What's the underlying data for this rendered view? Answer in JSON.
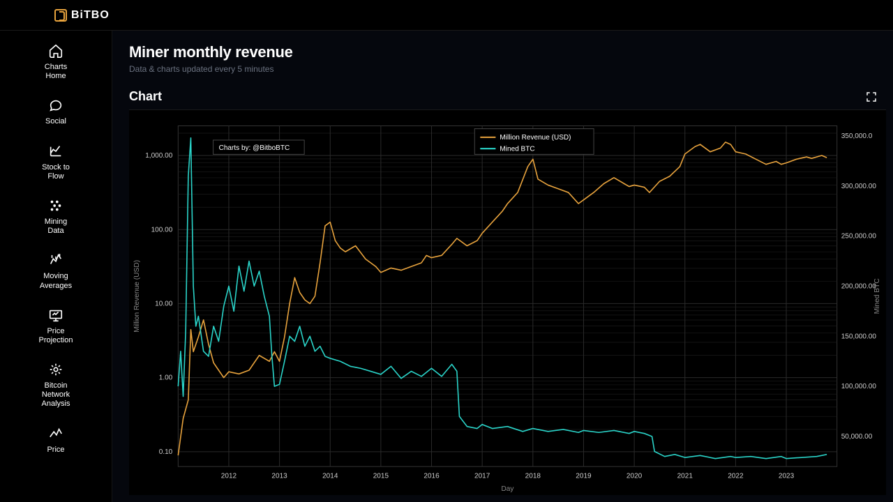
{
  "brand": "BiTBO",
  "sidebar": {
    "items": [
      {
        "label": "Charts Home",
        "icon": "home"
      },
      {
        "label": "Social",
        "icon": "social"
      },
      {
        "label": "Stock to Flow",
        "icon": "stf"
      },
      {
        "label": "Mining Data",
        "icon": "mining"
      },
      {
        "label": "Moving Averages",
        "icon": "ma"
      },
      {
        "label": "Price Projection",
        "icon": "proj"
      },
      {
        "label": "Bitcoin Network Analysis",
        "icon": "network"
      },
      {
        "label": "Price",
        "icon": "price"
      }
    ]
  },
  "page": {
    "title": "Miner monthly revenue",
    "subtitle": "Data & charts updated every 5 minutes",
    "chart_header": "Chart"
  },
  "chart": {
    "attribution": "Charts by: @BitboBTC",
    "legend": [
      {
        "label": "Million Revenue (USD)",
        "color": "#e8a33d"
      },
      {
        "label": "Mined BTC",
        "color": "#2ad4c9"
      }
    ],
    "x": {
      "label": "Day",
      "ticks": [
        "2012",
        "2013",
        "2014",
        "2015",
        "2016",
        "2017",
        "2018",
        "2019",
        "2020",
        "2021",
        "2022",
        "2023"
      ],
      "domain": [
        2011,
        2024
      ]
    },
    "y_left": {
      "label": "Million Revenue (USD)",
      "scale": "log",
      "ticks": [
        "0.10",
        "1.00",
        "10.00",
        "100.00",
        "1,000.00"
      ],
      "domain_log10": [
        -1.2,
        3.4
      ]
    },
    "y_right": {
      "label": "Mined BTC",
      "scale": "linear",
      "ticks": [
        "50,000.00",
        "100,000.00",
        "150,000.00",
        "200,000.00",
        "250,000.00",
        "300,000.00",
        "350,000.0"
      ],
      "domain": [
        20000,
        360000
      ]
    },
    "grid_color": "#2a2a2a",
    "background_color": "#000000",
    "series_revenue": {
      "color": "#e8a33d",
      "stroke_width": 1.6,
      "points": [
        [
          2011.0,
          -1.05
        ],
        [
          2011.1,
          -0.55
        ],
        [
          2011.2,
          -0.3
        ],
        [
          2011.25,
          0.65
        ],
        [
          2011.3,
          0.35
        ],
        [
          2011.4,
          0.55
        ],
        [
          2011.5,
          0.78
        ],
        [
          2011.6,
          0.45
        ],
        [
          2011.7,
          0.2
        ],
        [
          2011.8,
          0.1
        ],
        [
          2011.9,
          0.0
        ],
        [
          2012.0,
          0.08
        ],
        [
          2012.2,
          0.05
        ],
        [
          2012.4,
          0.1
        ],
        [
          2012.6,
          0.3
        ],
        [
          2012.8,
          0.22
        ],
        [
          2012.9,
          0.35
        ],
        [
          2013.0,
          0.22
        ],
        [
          2013.1,
          0.55
        ],
        [
          2013.2,
          1.0
        ],
        [
          2013.3,
          1.35
        ],
        [
          2013.4,
          1.15
        ],
        [
          2013.5,
          1.05
        ],
        [
          2013.6,
          1.0
        ],
        [
          2013.7,
          1.1
        ],
        [
          2013.8,
          1.55
        ],
        [
          2013.9,
          2.05
        ],
        [
          2014.0,
          2.1
        ],
        [
          2014.1,
          1.85
        ],
        [
          2014.2,
          1.75
        ],
        [
          2014.3,
          1.7
        ],
        [
          2014.5,
          1.78
        ],
        [
          2014.7,
          1.6
        ],
        [
          2014.9,
          1.5
        ],
        [
          2015.0,
          1.42
        ],
        [
          2015.2,
          1.48
        ],
        [
          2015.4,
          1.45
        ],
        [
          2015.6,
          1.5
        ],
        [
          2015.8,
          1.55
        ],
        [
          2015.9,
          1.65
        ],
        [
          2016.0,
          1.62
        ],
        [
          2016.2,
          1.65
        ],
        [
          2016.4,
          1.8
        ],
        [
          2016.5,
          1.88
        ],
        [
          2016.7,
          1.78
        ],
        [
          2016.9,
          1.85
        ],
        [
          2017.0,
          1.95
        ],
        [
          2017.2,
          2.1
        ],
        [
          2017.4,
          2.25
        ],
        [
          2017.5,
          2.35
        ],
        [
          2017.7,
          2.5
        ],
        [
          2017.9,
          2.85
        ],
        [
          2018.0,
          2.95
        ],
        [
          2018.1,
          2.68
        ],
        [
          2018.3,
          2.6
        ],
        [
          2018.5,
          2.55
        ],
        [
          2018.7,
          2.5
        ],
        [
          2018.9,
          2.35
        ],
        [
          2019.0,
          2.4
        ],
        [
          2019.2,
          2.5
        ],
        [
          2019.4,
          2.62
        ],
        [
          2019.6,
          2.7
        ],
        [
          2019.8,
          2.62
        ],
        [
          2019.9,
          2.58
        ],
        [
          2020.0,
          2.6
        ],
        [
          2020.2,
          2.57
        ],
        [
          2020.3,
          2.5
        ],
        [
          2020.5,
          2.65
        ],
        [
          2020.7,
          2.72
        ],
        [
          2020.9,
          2.85
        ],
        [
          2021.0,
          3.02
        ],
        [
          2021.2,
          3.12
        ],
        [
          2021.3,
          3.15
        ],
        [
          2021.5,
          3.05
        ],
        [
          2021.7,
          3.1
        ],
        [
          2021.8,
          3.18
        ],
        [
          2021.9,
          3.15
        ],
        [
          2022.0,
          3.05
        ],
        [
          2022.2,
          3.02
        ],
        [
          2022.4,
          2.95
        ],
        [
          2022.6,
          2.88
        ],
        [
          2022.8,
          2.92
        ],
        [
          2022.9,
          2.88
        ],
        [
          2023.0,
          2.9
        ],
        [
          2023.2,
          2.95
        ],
        [
          2023.4,
          2.98
        ],
        [
          2023.5,
          2.96
        ],
        [
          2023.7,
          3.0
        ],
        [
          2023.8,
          2.97
        ]
      ]
    },
    "series_mined": {
      "color": "#2ad4c9",
      "stroke_width": 1.6,
      "points": [
        [
          2011.0,
          100000
        ],
        [
          2011.05,
          135000
        ],
        [
          2011.1,
          90000
        ],
        [
          2011.15,
          155000
        ],
        [
          2011.2,
          310000
        ],
        [
          2011.25,
          348000
        ],
        [
          2011.3,
          200000
        ],
        [
          2011.35,
          160000
        ],
        [
          2011.4,
          170000
        ],
        [
          2011.5,
          135000
        ],
        [
          2011.6,
          130000
        ],
        [
          2011.7,
          160000
        ],
        [
          2011.8,
          145000
        ],
        [
          2011.9,
          180000
        ],
        [
          2012.0,
          200000
        ],
        [
          2012.1,
          175000
        ],
        [
          2012.2,
          220000
        ],
        [
          2012.3,
          195000
        ],
        [
          2012.4,
          225000
        ],
        [
          2012.5,
          200000
        ],
        [
          2012.6,
          215000
        ],
        [
          2012.7,
          190000
        ],
        [
          2012.8,
          170000
        ],
        [
          2012.85,
          130000
        ],
        [
          2012.9,
          100000
        ],
        [
          2013.0,
          102000
        ],
        [
          2013.1,
          125000
        ],
        [
          2013.2,
          150000
        ],
        [
          2013.3,
          145000
        ],
        [
          2013.4,
          160000
        ],
        [
          2013.5,
          140000
        ],
        [
          2013.6,
          150000
        ],
        [
          2013.7,
          135000
        ],
        [
          2013.8,
          140000
        ],
        [
          2013.9,
          130000
        ],
        [
          2014.0,
          128000
        ],
        [
          2014.2,
          125000
        ],
        [
          2014.4,
          120000
        ],
        [
          2014.6,
          118000
        ],
        [
          2014.8,
          115000
        ],
        [
          2015.0,
          112000
        ],
        [
          2015.2,
          120000
        ],
        [
          2015.4,
          108000
        ],
        [
          2015.6,
          115000
        ],
        [
          2015.8,
          110000
        ],
        [
          2016.0,
          118000
        ],
        [
          2016.2,
          110000
        ],
        [
          2016.4,
          122000
        ],
        [
          2016.5,
          115000
        ],
        [
          2016.55,
          70000
        ],
        [
          2016.7,
          60000
        ],
        [
          2016.9,
          58000
        ],
        [
          2017.0,
          62000
        ],
        [
          2017.2,
          58000
        ],
        [
          2017.5,
          60000
        ],
        [
          2017.8,
          55000
        ],
        [
          2018.0,
          58000
        ],
        [
          2018.3,
          55000
        ],
        [
          2018.6,
          57000
        ],
        [
          2018.9,
          54000
        ],
        [
          2019.0,
          56000
        ],
        [
          2019.3,
          54000
        ],
        [
          2019.6,
          56000
        ],
        [
          2019.9,
          53000
        ],
        [
          2020.0,
          55000
        ],
        [
          2020.2,
          53000
        ],
        [
          2020.35,
          50000
        ],
        [
          2020.4,
          35000
        ],
        [
          2020.6,
          30000
        ],
        [
          2020.8,
          32000
        ],
        [
          2021.0,
          29000
        ],
        [
          2021.3,
          31000
        ],
        [
          2021.6,
          28000
        ],
        [
          2021.9,
          30000
        ],
        [
          2022.0,
          29000
        ],
        [
          2022.3,
          30000
        ],
        [
          2022.6,
          28000
        ],
        [
          2022.9,
          30000
        ],
        [
          2023.0,
          28000
        ],
        [
          2023.3,
          29000
        ],
        [
          2023.6,
          30000
        ],
        [
          2023.8,
          32000
        ]
      ]
    }
  }
}
